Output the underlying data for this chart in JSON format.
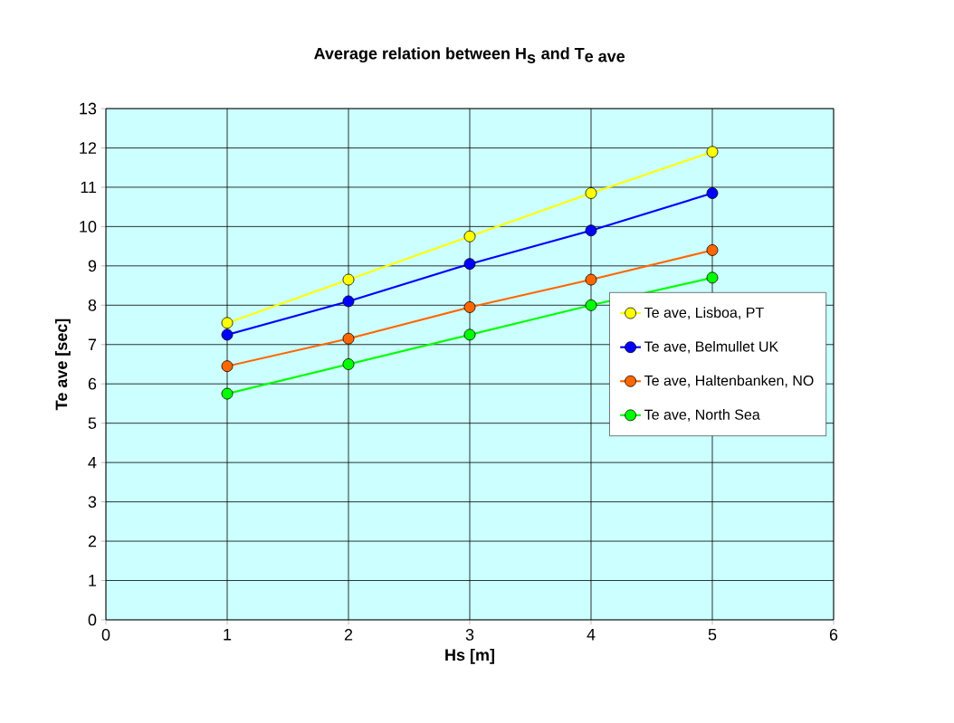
{
  "chart_data": {
    "type": "line",
    "title": "\\textbf{Average relation between H}_{\\textbf{s}}\\textbf{ and T}_{\\textbf{e ave}}",
    "xlabel": "Hs [m]",
    "ylabel": "Te ave [sec]",
    "x": [
      1,
      2,
      3,
      4,
      5
    ],
    "series": [
      {
        "name": "Te ave, Lisboa, PT",
        "color": "#ffff00",
        "values": [
          7.55,
          8.65,
          9.75,
          10.85,
          11.9
        ]
      },
      {
        "name": "Te ave, Belmullet UK",
        "color": "#0000ff",
        "values": [
          7.25,
          8.1,
          9.05,
          9.9,
          10.85
        ]
      },
      {
        "name": "Te ave, Haltenbanken, NO",
        "color": "#ff6600",
        "values": [
          6.45,
          7.15,
          7.95,
          8.65,
          9.4
        ]
      },
      {
        "name": "Te ave, North Sea",
        "color": "#00ff00",
        "values": [
          5.75,
          6.5,
          7.25,
          8.0,
          8.7
        ]
      }
    ],
    "xlim": [
      0,
      6
    ],
    "xticks": [
      0,
      1,
      2,
      3,
      4,
      5,
      6
    ],
    "ylim": [
      0,
      13
    ],
    "yticks": [
      0,
      1,
      2,
      3,
      4,
      5,
      6,
      7,
      8,
      9,
      10,
      11,
      12,
      13
    ],
    "grid": true,
    "legend": "right",
    "marker": "circle",
    "line_style": "solid"
  }
}
